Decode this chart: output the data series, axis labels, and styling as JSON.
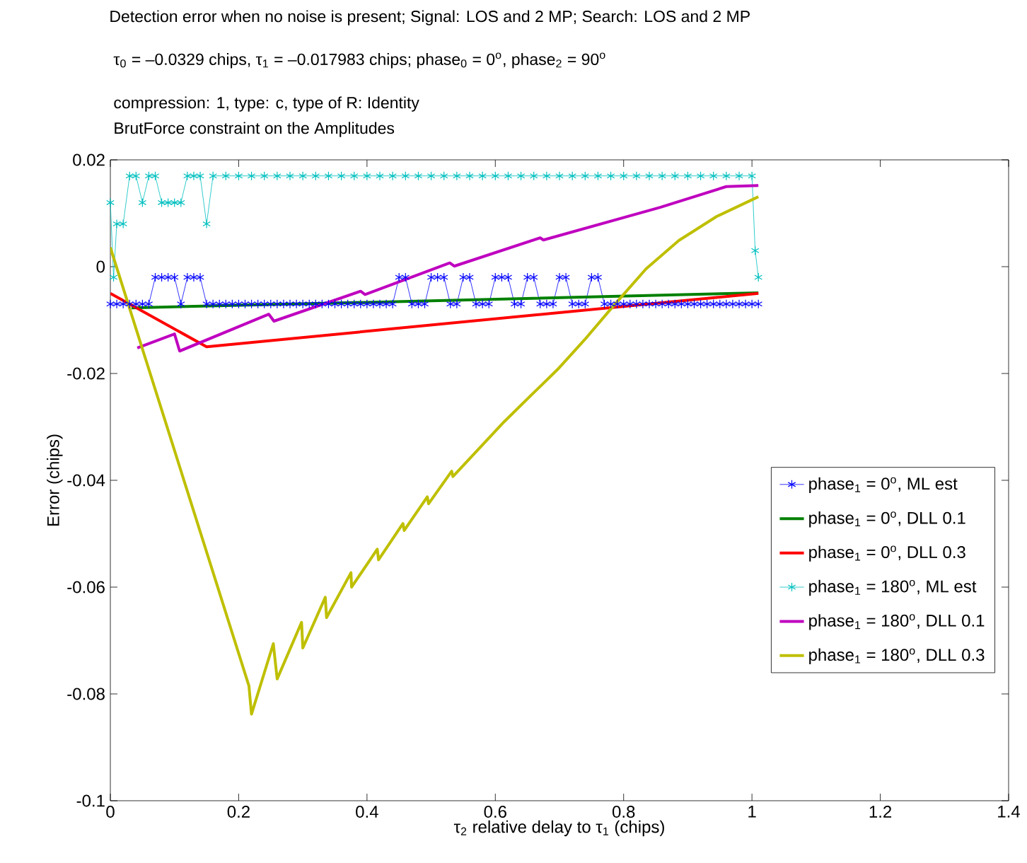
{
  "chart_data": {
    "type": "line",
    "title": "Detection error when no noise is present;  Signal: LOS and 2 MP;   Search: LOS and 2 MP",
    "subtitle": "τ$_{0}$ = –0.0329 chips, τ$_{1}$ = –0.017983 chips;  phase$_{0}$ = 0$^{o}$, phase$_{2}$ = 90$^{o}$",
    "annotations": [
      "compression: 1, type: c, type of R: Identity",
      "BrutForce constraint on the Amplitudes"
    ],
    "xlabel": "τ$_{2}$ relative delay to τ$_{1}$ (chips)",
    "ylabel": "Error (chips)",
    "xlim": [
      0,
      1.4
    ],
    "ylim": [
      -0.1,
      0.02
    ],
    "xticks": [
      0,
      0.2,
      0.4,
      0.6,
      0.8,
      1,
      1.2,
      1.4
    ],
    "yticks": [
      -0.1,
      -0.08,
      -0.06,
      -0.04,
      -0.02,
      0,
      0.02
    ],
    "legend": "right",
    "series": [
      {
        "name": "phase$_{1}$ = 0$^{o}$,   ML est",
        "color": "#0000ff",
        "marker": "cross",
        "x": [
          0,
          0.01,
          0.02,
          0.03,
          0.04,
          0.05,
          0.06,
          0.07,
          0.08,
          0.09,
          0.1,
          0.11,
          0.12,
          0.13,
          0.14,
          0.15,
          0.16,
          0.17,
          0.18,
          0.19,
          0.2,
          0.21,
          0.22,
          0.23,
          0.24,
          0.25,
          0.26,
          0.27,
          0.28,
          0.29,
          0.3,
          0.31,
          0.32,
          0.33,
          0.34,
          0.35,
          0.36,
          0.37,
          0.38,
          0.39,
          0.4,
          0.41,
          0.42,
          0.43,
          0.44,
          0.45,
          0.46,
          0.47,
          0.48,
          0.49,
          0.5,
          0.51,
          0.52,
          0.53,
          0.54,
          0.55,
          0.56,
          0.57,
          0.58,
          0.59,
          0.6,
          0.61,
          0.62,
          0.63,
          0.64,
          0.65,
          0.66,
          0.67,
          0.68,
          0.69,
          0.7,
          0.71,
          0.72,
          0.73,
          0.74,
          0.75,
          0.76,
          0.77,
          0.78,
          0.79,
          0.8,
          0.81,
          0.82,
          0.83,
          0.84,
          0.85,
          0.86,
          0.87,
          0.88,
          0.89,
          0.9,
          0.91,
          0.92,
          0.93,
          0.94,
          0.95,
          0.96,
          0.97,
          0.98,
          0.99,
          1,
          1.01
        ],
        "values": [
          -0.007,
          -0.007,
          -0.007,
          -0.007,
          -0.007,
          -0.007,
          -0.007,
          -0.002,
          -0.002,
          -0.002,
          -0.002,
          -0.007,
          -0.002,
          -0.002,
          -0.002,
          -0.007,
          -0.007,
          -0.007,
          -0.007,
          -0.007,
          -0.007,
          -0.007,
          -0.007,
          -0.007,
          -0.007,
          -0.007,
          -0.007,
          -0.007,
          -0.007,
          -0.007,
          -0.007,
          -0.007,
          -0.007,
          -0.007,
          -0.007,
          -0.007,
          -0.007,
          -0.007,
          -0.007,
          -0.007,
          -0.007,
          -0.007,
          -0.007,
          -0.007,
          -0.007,
          -0.002,
          -0.002,
          -0.007,
          -0.007,
          -0.007,
          -0.002,
          -0.002,
          -0.002,
          -0.007,
          -0.007,
          -0.002,
          -0.002,
          -0.007,
          -0.007,
          -0.007,
          -0.002,
          -0.002,
          -0.002,
          -0.007,
          -0.007,
          -0.002,
          -0.002,
          -0.007,
          -0.007,
          -0.007,
          -0.002,
          -0.002,
          -0.007,
          -0.007,
          -0.007,
          -0.002,
          -0.002,
          -0.007,
          -0.007,
          -0.007,
          -0.007,
          -0.007,
          -0.007,
          -0.007,
          -0.007,
          -0.007,
          -0.007,
          -0.007,
          -0.007,
          -0.007,
          -0.007,
          -0.007,
          -0.007,
          -0.007,
          -0.007,
          -0.007,
          -0.007,
          -0.007,
          -0.007,
          -0.007,
          -0.007,
          -0.007
        ]
      },
      {
        "name": "phase$_{1}$ = 0$^{o}$,   DLL 0.1",
        "color": "#008000",
        "marker": "none",
        "x": [
          0.033,
          0.5,
          1.01
        ],
        "values": [
          -0.0077,
          -0.0064,
          -0.0049
        ]
      },
      {
        "name": "phase$_{1}$ = 0$^{o}$,   DLL 0.3",
        "color": "#ff0000",
        "marker": "none",
        "x": [
          0,
          0.15,
          1.01
        ],
        "values": [
          -0.005,
          -0.015,
          -0.005
        ]
      },
      {
        "name": "phase$_{1}$ = 180$^{o}$, ML est",
        "color": "#00bfbf",
        "marker": "cross",
        "x": [
          0,
          0.005,
          0.01,
          0.02,
          0.03,
          0.04,
          0.05,
          0.06,
          0.07,
          0.08,
          0.09,
          0.1,
          0.11,
          0.12,
          0.13,
          0.14,
          0.15,
          0.16,
          0.18,
          0.2,
          0.22,
          0.24,
          0.26,
          0.28,
          0.3,
          0.32,
          0.34,
          0.36,
          0.38,
          0.4,
          0.42,
          0.44,
          0.46,
          0.48,
          0.5,
          0.52,
          0.54,
          0.56,
          0.58,
          0.6,
          0.62,
          0.64,
          0.66,
          0.68,
          0.7,
          0.72,
          0.74,
          0.76,
          0.78,
          0.8,
          0.82,
          0.84,
          0.86,
          0.88,
          0.9,
          0.92,
          0.94,
          0.96,
          0.98,
          1,
          1.005,
          1.01
        ],
        "values": [
          0.012,
          -0.002,
          0.008,
          0.008,
          0.017,
          0.017,
          0.012,
          0.017,
          0.017,
          0.012,
          0.012,
          0.012,
          0.012,
          0.017,
          0.017,
          0.017,
          0.008,
          0.017,
          0.017,
          0.017,
          0.017,
          0.017,
          0.017,
          0.017,
          0.017,
          0.017,
          0.017,
          0.017,
          0.017,
          0.017,
          0.017,
          0.017,
          0.017,
          0.017,
          0.017,
          0.017,
          0.017,
          0.017,
          0.017,
          0.017,
          0.017,
          0.017,
          0.017,
          0.017,
          0.017,
          0.017,
          0.017,
          0.017,
          0.017,
          0.017,
          0.017,
          0.017,
          0.017,
          0.017,
          0.017,
          0.017,
          0.017,
          0.017,
          0.017,
          0.017,
          0.003,
          -0.002
        ]
      },
      {
        "name": "phase$_{1}$ = 180$^{o}$, DLL 0.1",
        "color": "#bf00bf",
        "marker": "none",
        "x": [
          0.042,
          0.1,
          0.108,
          0.247,
          0.255,
          0.39,
          0.397,
          0.529,
          0.536,
          0.67,
          0.675,
          0.857,
          0.96,
          1.01
        ],
        "values": [
          -0.0152,
          -0.0126,
          -0.0158,
          -0.0089,
          -0.0102,
          -0.0046,
          -0.0052,
          0.0007,
          0.0001,
          0.0054,
          0.005,
          0.0111,
          0.015,
          0.0152
        ]
      },
      {
        "name": "phase$_{1}$ = 180$^{o}$, DLL 0.3",
        "color": "#bfbf00",
        "marker": "none",
        "x": [
          0,
          0.216,
          0.22,
          0.254,
          0.26,
          0.298,
          0.3,
          0.335,
          0.337,
          0.375,
          0.376,
          0.416,
          0.418,
          0.456,
          0.458,
          0.494,
          0.496,
          0.532,
          0.534,
          0.614,
          0.659,
          0.699,
          0.739,
          0.783,
          0.835,
          0.886,
          0.945,
          1.01
        ],
        "values": [
          0.0036,
          -0.0785,
          -0.0838,
          -0.0706,
          -0.0772,
          -0.0666,
          -0.0714,
          -0.0619,
          -0.0657,
          -0.0573,
          -0.06,
          -0.0529,
          -0.0549,
          -0.0481,
          -0.0494,
          -0.0431,
          -0.0444,
          -0.0383,
          -0.0393,
          -0.029,
          -0.0237,
          -0.019,
          -0.0137,
          -0.0075,
          -0.0004,
          0.0049,
          0.0094,
          0.0131
        ]
      }
    ]
  }
}
